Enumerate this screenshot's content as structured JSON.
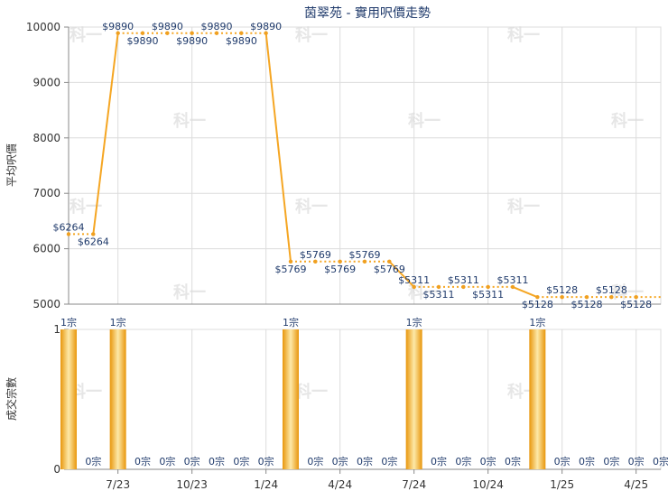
{
  "colors": {
    "line": "#f5a623",
    "point": "#f0a020",
    "label": "#1f3a6b",
    "grid": "#dcdcdc",
    "bar_dark": "#e8960c",
    "bar_light": "#fde9a8",
    "axis": "#888888",
    "watermark": "#e6e6e6"
  },
  "watermark_text": "科一",
  "chart_data": [
    {
      "type": "line",
      "title": "茵翠苑 - 實用呎價走勢",
      "ylabel": "平均呎價",
      "ylim": [
        5000,
        10000
      ],
      "yticks": [
        5000,
        6000,
        7000,
        8000,
        9000,
        10000
      ],
      "x": [
        "2023-05",
        "2023-06",
        "2023-07",
        "2023-08",
        "2023-09",
        "2023-10",
        "2023-11",
        "2023-12",
        "2024-01",
        "2024-02",
        "2024-03",
        "2024-04",
        "2024-05",
        "2024-06",
        "2024-07",
        "2024-08",
        "2024-09",
        "2024-10",
        "2024-11",
        "2024-12",
        "2025-01",
        "2025-02",
        "2025-03",
        "2025-04",
        "2025-05"
      ],
      "values": [
        6264,
        6264,
        9890,
        9890,
        9890,
        9890,
        9890,
        9890,
        9890,
        5769,
        5769,
        5769,
        5769,
        5769,
        5311,
        5311,
        5311,
        5311,
        5311,
        5128,
        5128,
        5128,
        5128,
        5128,
        null
      ],
      "labels": [
        "$6264",
        "$6264",
        "$9890",
        "$9890",
        "$9890",
        "$9890",
        "$9890",
        "$9890",
        "$9890",
        "$5769",
        "$5769",
        "$5769",
        "$5769",
        "$5769",
        "$5311",
        "$5311",
        "$5311",
        "$5311",
        "$5311",
        "$5128",
        "$5128",
        "$5128",
        "$5128",
        "$5128"
      ],
      "grid": true
    },
    {
      "type": "bar",
      "ylabel": "成交宗數",
      "ylim": [
        0,
        1
      ],
      "yticks": [
        0,
        1
      ],
      "xtick_labels": [
        "7/23",
        "10/23",
        "1/24",
        "4/24",
        "7/24",
        "10/24",
        "1/25",
        "4/25"
      ],
      "values": [
        1,
        0,
        1,
        0,
        0,
        0,
        0,
        0,
        0,
        1,
        0,
        0,
        0,
        0,
        1,
        0,
        0,
        0,
        0,
        1,
        0,
        0,
        0,
        0,
        0
      ],
      "labels": [
        "1宗",
        "0宗",
        "1宗",
        "0宗",
        "0宗",
        "0宗",
        "0宗",
        "0宗",
        "0宗",
        "1宗",
        "0宗",
        "0宗",
        "0宗",
        "0宗",
        "1宗",
        "0宗",
        "0宗",
        "0宗",
        "0宗",
        "1宗",
        "0宗",
        "0宗",
        "0宗",
        "0宗",
        "0宗"
      ],
      "grid": true
    }
  ]
}
